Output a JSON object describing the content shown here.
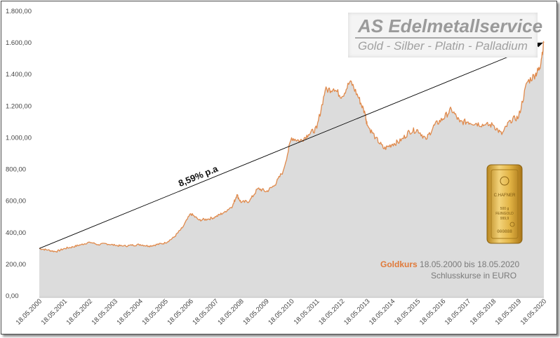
{
  "logo": {
    "title": "AS Edelmetallservice",
    "subtitle": "Gold - Silber - Platin - Palladium"
  },
  "caption": {
    "brand": "Goldkurs",
    "range": "18.05.2000 bis 18.05.2020",
    "note": "Schlusskurse in EURO"
  },
  "bar_image": {
    "maker": "C.HAFNER",
    "weight": "500 g",
    "fine": "FEINGOLD",
    "purity": "999,9",
    "serial": "000888"
  },
  "colors": {
    "line": "#e08a4c",
    "area": "#dcdcdc",
    "accent": "#e07a3a"
  },
  "chart_data": {
    "type": "area",
    "title": "",
    "xlabel": "",
    "ylabel": "",
    "ylim": [
      0,
      1800
    ],
    "y_ticks": [
      "0,00",
      "200,00",
      "400,00",
      "600,00",
      "800,00",
      "1.000,00",
      "1.200,00",
      "1.400,00",
      "1.600,00",
      "1.800,00"
    ],
    "x_ticks": [
      "18.05.2000",
      "18.05.2001",
      "18.05.2002",
      "18.05.2003",
      "18.05.2004",
      "18.05.2005",
      "18.05.2006",
      "18.05.2007",
      "18.05.2008",
      "18.05.2009",
      "18.05.2010",
      "18.05.2011",
      "18.05.2012",
      "18.05.2013",
      "18.05.2014",
      "18.05.2015",
      "18.05.2016",
      "18.05.2017",
      "18.05.2018",
      "18.05.2019",
      "18.05.2020"
    ],
    "grid": false,
    "series": [
      {
        "x": [
          "2000-05",
          "2000-09",
          "2001-01",
          "2001-05",
          "2001-09",
          "2002-01",
          "2002-05",
          "2002-09",
          "2003-01",
          "2003-05",
          "2003-09",
          "2004-01",
          "2004-05",
          "2004-09",
          "2005-01",
          "2005-05",
          "2005-09",
          "2006-01",
          "2006-05",
          "2006-09",
          "2007-01",
          "2007-05",
          "2007-09",
          "2008-01",
          "2008-03",
          "2008-05",
          "2008-09",
          "2009-01",
          "2009-05",
          "2009-09",
          "2010-01",
          "2010-05",
          "2010-09",
          "2011-01",
          "2011-05",
          "2011-09",
          "2012-01",
          "2012-05",
          "2012-09",
          "2013-01",
          "2013-04",
          "2013-05",
          "2013-09",
          "2014-01",
          "2014-05",
          "2014-09",
          "2015-01",
          "2015-05",
          "2015-09",
          "2016-01",
          "2016-05",
          "2016-09",
          "2017-01",
          "2017-05",
          "2017-09",
          "2018-01",
          "2018-05",
          "2018-09",
          "2019-01",
          "2019-05",
          "2019-09",
          "2020-01",
          "2020-03",
          "2020-05"
        ],
        "values": [
          300,
          290,
          280,
          300,
          310,
          325,
          340,
          325,
          330,
          320,
          315,
          320,
          325,
          315,
          325,
          335,
          370,
          430,
          520,
          480,
          485,
          500,
          530,
          570,
          640,
          590,
          600,
          680,
          660,
          700,
          790,
          1000,
          980,
          1020,
          1060,
          1300,
          1310,
          1260,
          1360,
          1250,
          1150,
          1080,
          1000,
          930,
          960,
          980,
          1040,
          1050,
          990,
          1080,
          1120,
          1180,
          1100,
          1100,
          1090,
          1080,
          1080,
          1020,
          1110,
          1130,
          1350,
          1400,
          1440,
          1600
        ]
      }
    ],
    "annotations": [
      {
        "text": "8,59% p.a",
        "from": [
          "2000-05",
          300
        ],
        "to": [
          "2020-05",
          1600
        ]
      }
    ]
  }
}
